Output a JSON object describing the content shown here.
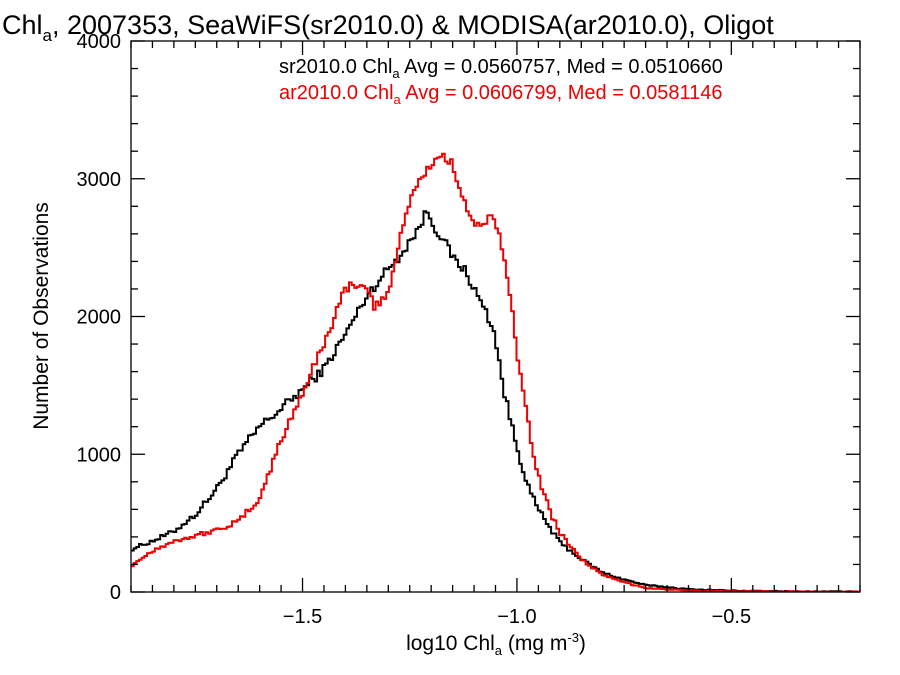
{
  "chart_data": {
    "type": "line",
    "title": {
      "pre": "Chl",
      "sub": "a",
      "post": ", 2007353, SeaWiFS(sr2010.0) & MODISA(ar2010.0), Oligot"
    },
    "xlabel": {
      "pre": "log10 Chl",
      "sub": "a",
      "mid": " (mg m",
      "sup": "-3",
      "post": ")"
    },
    "ylabel": "Number of Observations",
    "xlim": [
      -1.9,
      -0.2
    ],
    "ylim": [
      0,
      4000
    ],
    "x_ticks": [
      {
        "value": -1.5,
        "label": "−1.5"
      },
      {
        "value": -1.0,
        "label": "−1.0"
      },
      {
        "value": -0.5,
        "label": "−0.5"
      }
    ],
    "y_ticks": [
      {
        "value": 0,
        "label": "0"
      },
      {
        "value": 1000,
        "label": "1000"
      },
      {
        "value": 2000,
        "label": "2000"
      },
      {
        "value": 3000,
        "label": "3000"
      },
      {
        "value": 4000,
        "label": "4000"
      }
    ],
    "annotations": [
      {
        "pre": "sr2010.0 Chl",
        "sub": "a",
        "post": " Avg = 0.0560757, Med = 0.0510660",
        "color": "#000000"
      },
      {
        "pre": "ar2010.0 Chl",
        "sub": "a",
        "post": " Avg = 0.0606799, Med = 0.0581146",
        "color": "#ee0000"
      }
    ],
    "series": [
      {
        "color": "#000000",
        "points": [
          [
            -1.9,
            310
          ],
          [
            -1.85,
            370
          ],
          [
            -1.8,
            440
          ],
          [
            -1.75,
            560
          ],
          [
            -1.7,
            750
          ],
          [
            -1.65,
            1000
          ],
          [
            -1.6,
            1200
          ],
          [
            -1.55,
            1330
          ],
          [
            -1.5,
            1470
          ],
          [
            -1.45,
            1620
          ],
          [
            -1.4,
            1870
          ],
          [
            -1.35,
            2150
          ],
          [
            -1.3,
            2350
          ],
          [
            -1.27,
            2450
          ],
          [
            -1.25,
            2550
          ],
          [
            -1.23,
            2630
          ],
          [
            -1.21,
            2770
          ],
          [
            -1.19,
            2640
          ],
          [
            -1.17,
            2550
          ],
          [
            -1.15,
            2430
          ],
          [
            -1.12,
            2330
          ],
          [
            -1.1,
            2200
          ],
          [
            -1.07,
            2020
          ],
          [
            -1.05,
            1850
          ],
          [
            -1.03,
            1450
          ],
          [
            -1.0,
            1050
          ],
          [
            -0.97,
            730
          ],
          [
            -0.95,
            600
          ],
          [
            -0.92,
            450
          ],
          [
            -0.9,
            360
          ],
          [
            -0.85,
            240
          ],
          [
            -0.8,
            140
          ],
          [
            -0.75,
            90
          ],
          [
            -0.7,
            50
          ],
          [
            -0.6,
            20
          ],
          [
            -0.5,
            10
          ],
          [
            -0.4,
            5
          ],
          [
            -0.3,
            3
          ],
          [
            -0.2,
            2
          ]
        ]
      },
      {
        "color": "#ee0000",
        "points": [
          [
            -1.9,
            190
          ],
          [
            -1.85,
            300
          ],
          [
            -1.8,
            370
          ],
          [
            -1.75,
            410
          ],
          [
            -1.7,
            450
          ],
          [
            -1.65,
            510
          ],
          [
            -1.6,
            680
          ],
          [
            -1.55,
            1100
          ],
          [
            -1.5,
            1450
          ],
          [
            -1.45,
            1800
          ],
          [
            -1.42,
            2050
          ],
          [
            -1.4,
            2200
          ],
          [
            -1.37,
            2250
          ],
          [
            -1.35,
            2170
          ],
          [
            -1.33,
            2070
          ],
          [
            -1.3,
            2170
          ],
          [
            -1.28,
            2450
          ],
          [
            -1.25,
            2850
          ],
          [
            -1.22,
            3020
          ],
          [
            -1.2,
            3100
          ],
          [
            -1.18,
            3180
          ],
          [
            -1.15,
            3100
          ],
          [
            -1.13,
            2920
          ],
          [
            -1.1,
            2650
          ],
          [
            -1.08,
            2680
          ],
          [
            -1.06,
            2720
          ],
          [
            -1.04,
            2570
          ],
          [
            -1.02,
            2250
          ],
          [
            -1.0,
            1750
          ],
          [
            -0.98,
            1400
          ],
          [
            -0.96,
            950
          ],
          [
            -0.94,
            750
          ],
          [
            -0.92,
            560
          ],
          [
            -0.9,
            430
          ],
          [
            -0.85,
            240
          ],
          [
            -0.8,
            120
          ],
          [
            -0.75,
            70
          ],
          [
            -0.7,
            30
          ],
          [
            -0.6,
            10
          ],
          [
            -0.5,
            5
          ],
          [
            -0.4,
            3
          ],
          [
            -0.3,
            2
          ],
          [
            -0.2,
            1
          ]
        ]
      }
    ]
  }
}
